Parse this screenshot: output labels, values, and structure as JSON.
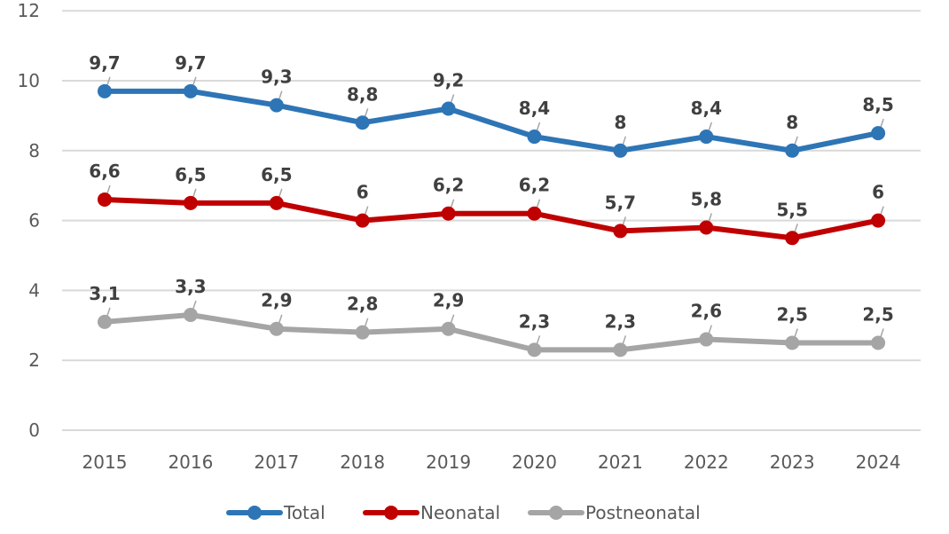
{
  "chart_data": {
    "type": "line",
    "title": "",
    "xlabel": "",
    "ylabel": "",
    "categories": [
      "2015",
      "2016",
      "2017",
      "2018",
      "2019",
      "2020",
      "2021",
      "2022",
      "2023",
      "2024"
    ],
    "ylim": [
      0,
      12
    ],
    "yticks": [
      0,
      2,
      4,
      6,
      8,
      10,
      12
    ],
    "ytick_labels": [
      "0",
      "2",
      "4",
      "6",
      "8",
      "10",
      "12"
    ],
    "grid": true,
    "legend_position": "bottom",
    "series": [
      {
        "name": "Total",
        "color": "#2E75B6",
        "values": [
          9.7,
          9.7,
          9.3,
          8.8,
          9.2,
          8.4,
          8.0,
          8.4,
          8.0,
          8.5
        ],
        "labels": [
          "9,7",
          "9,7",
          "9,3",
          "8,8",
          "9,2",
          "8,4",
          "8",
          "8,4",
          "8",
          "8,5"
        ]
      },
      {
        "name": "Neonatal",
        "color": "#C00000",
        "values": [
          6.6,
          6.5,
          6.5,
          6.0,
          6.2,
          6.2,
          5.7,
          5.8,
          5.5,
          6.0
        ],
        "labels": [
          "6,6",
          "6,5",
          "6,5",
          "6",
          "6,2",
          "6,2",
          "5,7",
          "5,8",
          "5,5",
          "6"
        ]
      },
      {
        "name": "Postneonatal",
        "color": "#A5A5A5",
        "values": [
          3.1,
          3.3,
          2.9,
          2.8,
          2.9,
          2.3,
          2.3,
          2.6,
          2.5,
          2.5
        ],
        "labels": [
          "3,1",
          "3,3",
          "2,9",
          "2,8",
          "2,9",
          "2,3",
          "2,3",
          "2,6",
          "2,5",
          "2,5"
        ]
      }
    ]
  }
}
